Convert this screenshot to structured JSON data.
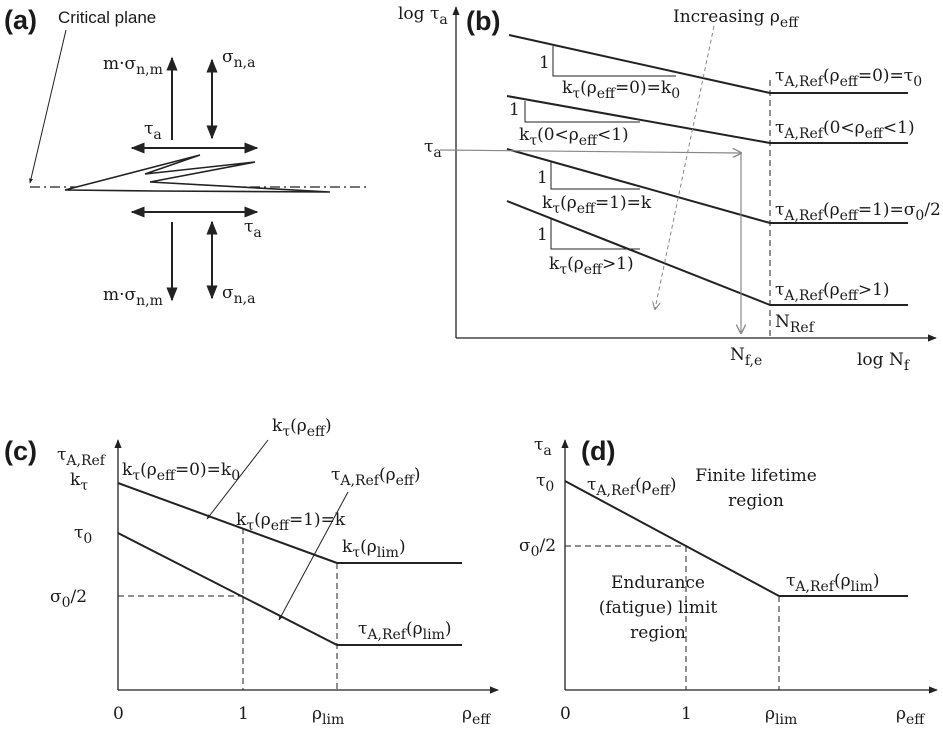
{
  "panel_a": {
    "tag": "(a)",
    "critical_plane": "Critical plane",
    "m": "m·σ",
    "m_sub": "n,m",
    "sig": "σ",
    "sig_sub": "n,a",
    "tau": "τ",
    "tau_sub": "a"
  },
  "panel_b": {
    "tag": "(b)",
    "y_axis": "log τ",
    "y_axis_sub": "a",
    "x_axis": "log N",
    "x_axis_sub": "f",
    "increasing_pre": "Increasing ρ",
    "increasing_sub": "eff",
    "tau_a": "τ",
    "tau_a_sub": "a",
    "n_fe": "N",
    "n_fe_sub": "f,e",
    "n_ref": "N",
    "n_ref_sub": "Ref",
    "slope_unit": "1",
    "k_labels": [
      {
        "pre": "k",
        "s1": "τ",
        "mid": "(ρ",
        "s2": "eff",
        "post": "=0)=k",
        "s3": "0"
      },
      {
        "pre": "k",
        "s1": "τ",
        "mid": "(0<ρ",
        "s2": "eff",
        "post": "<1)",
        "s3": ""
      },
      {
        "pre": "k",
        "s1": "τ",
        "mid": "(ρ",
        "s2": "eff",
        "post": "=1)=k",
        "s3": ""
      },
      {
        "pre": "k",
        "s1": "τ",
        "mid": "(ρ",
        "s2": "eff",
        "post": ">1)",
        "s3": ""
      }
    ],
    "t_labels": [
      {
        "pre": "τ",
        "s1": "A,Ref",
        "mid": "(ρ",
        "s2": "eff",
        "post": "=0)=τ",
        "s3": "0"
      },
      {
        "pre": "τ",
        "s1": "A,Ref",
        "mid": "(0<ρ",
        "s2": "eff",
        "post": "<1)",
        "s3": ""
      },
      {
        "pre": "τ",
        "s1": "A,Ref",
        "mid": "(ρ",
        "s2": "eff",
        "post": "=1)=σ",
        "s3": "0",
        "tail": "/2"
      },
      {
        "pre": "τ",
        "s1": "A,Ref",
        "mid": "(ρ",
        "s2": "eff",
        "post": ">1)",
        "s3": ""
      }
    ]
  },
  "panel_c": {
    "tag": "(c)",
    "y_axis": "τ",
    "y_axis_sub": "A,Ref",
    "k_tau": "k",
    "k_tau_sub": "τ",
    "tau0": "τ",
    "tau0_sub": "0",
    "sigma_half": "σ",
    "sigma_half_sub": "0",
    "sigma_half_tail": "/2",
    "x0": "0",
    "x1": "1",
    "rho_lim": "ρ",
    "rho_lim_sub": "lim",
    "rho_eff": "ρ",
    "rho_eff_sub": "eff",
    "kt_callout": {
      "pre": "k",
      "s1": "τ",
      "mid": "(ρ",
      "s2": "eff",
      "post": ")"
    },
    "ta_callout": {
      "pre": "τ",
      "s1": "A,Ref",
      "mid": "(ρ",
      "s2": "eff",
      "post": ")"
    },
    "k0_label": {
      "pre": "k",
      "s1": "τ",
      "mid": "(ρ",
      "s2": "eff",
      "post": "=0)=k",
      "s3": "0"
    },
    "k1_label": {
      "pre": "k",
      "s1": "τ",
      "mid": "(ρ",
      "s2": "eff",
      "post": "=1)=k"
    },
    "kt_lim": {
      "pre": "k",
      "s1": "τ",
      "mid": "(ρ",
      "s2": "lim",
      "post": ")"
    },
    "ta_lim": {
      "pre": "τ",
      "s1": "A,Ref",
      "mid": "(ρ",
      "s2": "lim",
      "post": ")"
    }
  },
  "panel_d": {
    "tag": "(d)",
    "y_axis": "τ",
    "y_axis_sub": "a",
    "tau0": "τ",
    "tau0_sub": "0",
    "sigma_half": "σ",
    "sigma_half_sub": "0",
    "sigma_half_tail": "/2",
    "x0": "0",
    "x1": "1",
    "rho_lim": "ρ",
    "rho_lim_sub": "lim",
    "rho_eff": "ρ",
    "rho_eff_sub": "eff",
    "line_label": {
      "pre": "τ",
      "s1": "A,Ref",
      "mid": "(ρ",
      "s2": "eff",
      "post": ")"
    },
    "lim_label": {
      "pre": "τ",
      "s1": "A,Ref",
      "mid": "(ρ",
      "s2": "lim",
      "post": ")"
    },
    "finite_l1": "Finite lifetime",
    "finite_l2": "region",
    "end_l1": "Endurance",
    "end_l2": "(fatigue) limit",
    "end_l3": "region"
  }
}
